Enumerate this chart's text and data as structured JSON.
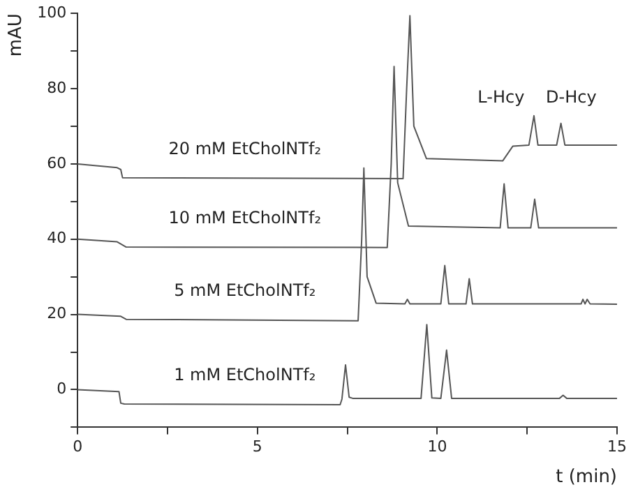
{
  "chart_data": {
    "type": "line",
    "xlabel": "t (min)",
    "ylabel": "mAU",
    "xlim": [
      0,
      15
    ],
    "ylim": [
      -10,
      100
    ],
    "xticks": [
      0,
      {
        "value": 2.5,
        "label": null
      },
      5,
      {
        "value": 7.5,
        "label": null
      },
      10,
      {
        "value": 12.5,
        "label": null
      },
      15
    ],
    "yticks": [
      {
        "value": -10,
        "label": null
      },
      0,
      {
        "value": 10,
        "label": null
      },
      20,
      {
        "value": 30,
        "label": null
      },
      40,
      {
        "value": 50,
        "label": null
      },
      60,
      {
        "value": 70,
        "label": null
      },
      80,
      {
        "value": 90,
        "label": null
      },
      100
    ],
    "legend": false,
    "marker": "none",
    "line_style": "solid",
    "annotations": [
      "L-Hcy",
      "D-Hcy"
    ],
    "series": [
      {
        "name": "1 mM EtCholNTf₂",
        "color": "#555555",
        "x": [
          0,
          1.15,
          1.2,
          1.3,
          7.3,
          7.35,
          7.45,
          7.55,
          7.65,
          9.55,
          9.71,
          9.85,
          10.1,
          10.26,
          10.4,
          13.4,
          13.5,
          13.6,
          15
        ],
        "values": [
          0,
          -0.5,
          -3.6,
          -3.8,
          -4,
          -2.5,
          6.6,
          -2,
          -2.3,
          -2.3,
          17.3,
          -2.2,
          -2.3,
          10.5,
          -2.3,
          -2.3,
          -1.5,
          -2.3,
          -2.3
        ]
      },
      {
        "name": "5 mM EtCholNTf₂",
        "color": "#555555",
        "x": [
          0,
          1.2,
          1.35,
          7.8,
          7.9,
          7.96,
          8.05,
          8.3,
          9.1,
          9.17,
          9.24,
          10.1,
          10.21,
          10.32,
          10.8,
          10.89,
          10.98,
          14,
          14.05,
          14.11,
          14.17,
          14.25,
          15
        ],
        "values": [
          20,
          19.5,
          18.7,
          18.3,
          40,
          58.9,
          30,
          23,
          22.8,
          24,
          22.8,
          22.8,
          33,
          22.8,
          22.8,
          29.5,
          22.8,
          22.8,
          24,
          22.8,
          24,
          22.8,
          22.7
        ]
      },
      {
        "name": "10 mM EtCholNTf₂",
        "color": "#555555",
        "x": [
          0,
          1.1,
          1.35,
          8.61,
          8.72,
          8.8,
          8.9,
          9.2,
          11.75,
          11.86,
          11.97,
          12.6,
          12.71,
          12.82,
          15
        ],
        "values": [
          40,
          39.3,
          37.9,
          37.8,
          60,
          85.9,
          55,
          43.5,
          43,
          54.7,
          43,
          43,
          50.6,
          43,
          43
        ]
      },
      {
        "name": "20 mM EtCholNTf₂",
        "color": "#555555",
        "x": [
          0,
          1.1,
          1.2,
          1.25,
          9.05,
          9.15,
          9.24,
          9.35,
          9.7,
          11.82,
          12.1,
          12.55,
          12.69,
          12.8,
          13.32,
          13.44,
          13.55,
          15
        ],
        "values": [
          60,
          59,
          58.5,
          56.3,
          56.1,
          80,
          99.4,
          70,
          61.4,
          60.8,
          64.7,
          65,
          72.8,
          65,
          65,
          70.8,
          65,
          65
        ]
      }
    ]
  }
}
